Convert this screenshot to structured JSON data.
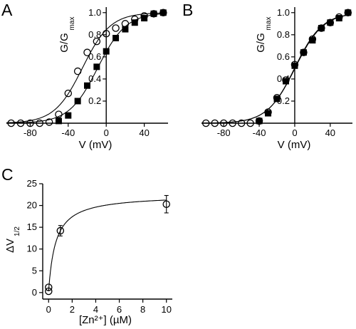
{
  "chart_data": [
    {
      "panel": "A",
      "type": "scatter",
      "xlabel": "V (mV)",
      "ylabel_main": "G/G",
      "ylabel_sub": "max",
      "xlim": [
        -105,
        65
      ],
      "ylim": [
        0,
        1.05
      ],
      "x_ticks": [
        -80,
        -40,
        0,
        40
      ],
      "x_tick_labels": [
        "-80",
        "-40",
        "0",
        "40"
      ],
      "y_ticks": [
        0.2,
        0.4,
        0.6,
        0.8,
        1.0
      ],
      "y_tick_labels": [
        "0.2",
        "0.4",
        "0.6",
        "0.8",
        "1.0"
      ],
      "series": [
        {
          "marker": "open-circle",
          "x": [
            -100,
            -90,
            -80,
            -70,
            -60,
            -50,
            -40,
            -30,
            -20,
            -10,
            0,
            10,
            20,
            30,
            40,
            50,
            60
          ],
          "y": [
            0.0,
            0.0,
            0.0,
            0.0,
            0.01,
            0.08,
            0.27,
            0.47,
            0.64,
            0.74,
            0.81,
            0.86,
            0.9,
            0.94,
            0.97,
            0.99,
            1.0
          ]
        },
        {
          "marker": "filled-square",
          "x": [
            -50,
            -40,
            -30,
            -20,
            -10,
            0,
            10,
            20,
            30,
            40,
            50,
            60
          ],
          "y": [
            0.02,
            0.07,
            0.2,
            0.34,
            0.51,
            0.65,
            0.77,
            0.85,
            0.91,
            0.95,
            0.99,
            1.0
          ]
        }
      ]
    },
    {
      "panel": "B",
      "type": "scatter",
      "xlabel": "V (mV)",
      "ylabel_main": "G/G",
      "ylabel_sub": "max",
      "xlim": [
        -105,
        65
      ],
      "ylim": [
        0,
        1.05
      ],
      "x_ticks": [
        -80,
        -40,
        0,
        40
      ],
      "x_tick_labels": [
        "-80",
        "-40",
        "0",
        "40"
      ],
      "y_ticks": [
        0.2,
        0.4,
        0.6,
        0.8,
        1.0
      ],
      "y_tick_labels": [
        "0.2",
        "0.4",
        "0.6",
        "0.8",
        "1.0"
      ],
      "series": [
        {
          "marker": "open-circle",
          "x": [
            -100,
            -90,
            -80,
            -70,
            -60,
            -50,
            -40,
            -30,
            -20,
            -10,
            0,
            10,
            20,
            30,
            40,
            50,
            60
          ],
          "y": [
            0.0,
            0.0,
            0.0,
            0.0,
            0.0,
            0.0,
            0.02,
            0.1,
            0.23,
            0.39,
            0.53,
            0.64,
            0.76,
            0.86,
            0.91,
            0.96,
            1.0
          ]
        },
        {
          "marker": "filled-square",
          "x": [
            -40,
            -30,
            -20,
            -10,
            0,
            10,
            20,
            30,
            40,
            50,
            60
          ],
          "y": [
            0.02,
            0.09,
            0.22,
            0.38,
            0.52,
            0.64,
            0.75,
            0.86,
            0.91,
            0.95,
            1.0
          ]
        }
      ]
    },
    {
      "panel": "C",
      "type": "scatter",
      "xlabel": "[Zn²⁺] (µM)",
      "ylabel_main": "ΔV",
      "ylabel_sub": "1/2",
      "xlim": [
        -0.5,
        10.5
      ],
      "ylim": [
        -1.5,
        25
      ],
      "x_ticks": [
        0,
        2,
        4,
        6,
        8,
        10
      ],
      "x_tick_labels": [
        "0",
        "2",
        "4",
        "6",
        "8",
        "10"
      ],
      "y_ticks": [
        0,
        5,
        10,
        15,
        20,
        25
      ],
      "y_tick_labels": [
        "0",
        "5",
        "10",
        "15",
        "20",
        "25"
      ],
      "series": [
        {
          "marker": "open-circle",
          "x": [
            0,
            0,
            1,
            10
          ],
          "y": [
            0.3,
            1.2,
            14.2,
            20.3
          ],
          "err": [
            0,
            0,
            1.2,
            2.0
          ]
        }
      ]
    }
  ]
}
